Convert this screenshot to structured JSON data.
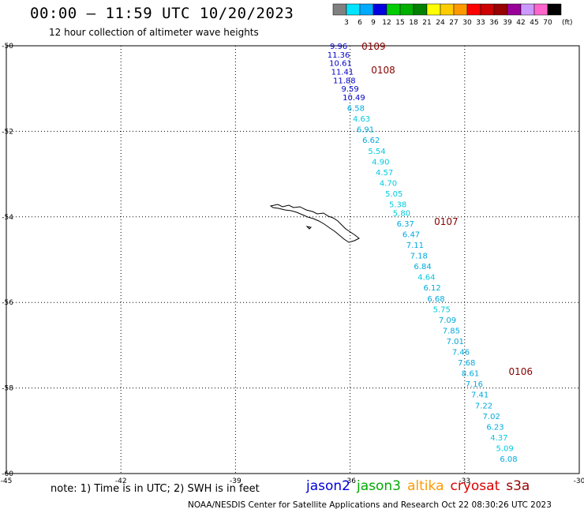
{
  "header": {
    "title": "00:00 – 11:59 UTC 10/20/2023",
    "subtitle": "12 hour collection of altimeter wave heights"
  },
  "color_scale": {
    "labels": [
      "3",
      "6",
      "9",
      "12",
      "15",
      "18",
      "21",
      "24",
      "27",
      "30",
      "33",
      "36",
      "39",
      "42",
      "45",
      "70"
    ],
    "unit": "(ft)",
    "colors": [
      "#808080",
      "#00e5ff",
      "#00aaff",
      "#0000e0",
      "#00cc00",
      "#00b000",
      "#008000",
      "#ffff00",
      "#ffcc00",
      "#ff9900",
      "#ff0000",
      "#cc0000",
      "#990000",
      "#990099",
      "#cc99ff",
      "#ff66cc",
      "#000000"
    ]
  },
  "axes": {
    "lon_labels": [
      "-45",
      "-42",
      "-39",
      "-36",
      "-33",
      "-30"
    ],
    "lat_labels": [
      "-50",
      "-52",
      "-54",
      "-56",
      "-58",
      "-60"
    ],
    "lon_min": -45,
    "lon_max": -30,
    "lat_top": -50,
    "lat_bottom": -60
  },
  "tracks": [
    {
      "id": "0109",
      "lon": -35.7,
      "lat": -50.0
    },
    {
      "id": "0108",
      "lon": -35.45,
      "lat": -50.55
    },
    {
      "id": "0107",
      "lon": -33.8,
      "lat": -54.1
    },
    {
      "id": "0106",
      "lon": -31.85,
      "lat": -57.6
    }
  ],
  "waves": [
    {
      "v": "9.96",
      "lon": -36.3,
      "lat": -50.0,
      "c": "#0000cc"
    },
    {
      "v": "11.36",
      "lon": -36.3,
      "lat": -50.2,
      "c": "#0000cc"
    },
    {
      "v": "10.61",
      "lon": -36.25,
      "lat": -50.4,
      "c": "#0000cc"
    },
    {
      "v": "11.41",
      "lon": -36.2,
      "lat": -50.6,
      "c": "#0000cc"
    },
    {
      "v": "11.88",
      "lon": -36.15,
      "lat": -50.8,
      "c": "#0000cc"
    },
    {
      "v": "9.59",
      "lon": -36.0,
      "lat": -51.0,
      "c": "#0000cc"
    },
    {
      "v": "10.49",
      "lon": -35.9,
      "lat": -51.2,
      "c": "#0000cc"
    },
    {
      "v": "6.58",
      "lon": -35.85,
      "lat": -51.45,
      "c": "#00aadd"
    },
    {
      "v": "4.63",
      "lon": -35.7,
      "lat": -51.7,
      "c": "#00ccdd"
    },
    {
      "v": "6.91",
      "lon": -35.6,
      "lat": -51.95,
      "c": "#00aadd"
    },
    {
      "v": "6.62",
      "lon": -35.45,
      "lat": -52.2,
      "c": "#00aadd"
    },
    {
      "v": "5.54",
      "lon": -35.3,
      "lat": -52.45,
      "c": "#00ccdd"
    },
    {
      "v": "4.90",
      "lon": -35.2,
      "lat": -52.7,
      "c": "#00ccdd"
    },
    {
      "v": "4.57",
      "lon": -35.1,
      "lat": -52.95,
      "c": "#00ccdd"
    },
    {
      "v": "4.70",
      "lon": -35.0,
      "lat": -53.2,
      "c": "#00ccdd"
    },
    {
      "v": "5.05",
      "lon": -34.85,
      "lat": -53.45,
      "c": "#00ccdd"
    },
    {
      "v": "5.38",
      "lon": -34.75,
      "lat": -53.7,
      "c": "#00ccdd"
    },
    {
      "v": "5.80",
      "lon": -34.65,
      "lat": -53.9,
      "c": "#00ccdd"
    },
    {
      "v": "6.37",
      "lon": -34.55,
      "lat": -54.15,
      "c": "#00aadd"
    },
    {
      "v": "6.47",
      "lon": -34.4,
      "lat": -54.4,
      "c": "#00aadd"
    },
    {
      "v": "7.11",
      "lon": -34.3,
      "lat": -54.65,
      "c": "#00aadd"
    },
    {
      "v": "7.18",
      "lon": -34.2,
      "lat": -54.9,
      "c": "#00aadd"
    },
    {
      "v": "6.84",
      "lon": -34.1,
      "lat": -55.15,
      "c": "#00aadd"
    },
    {
      "v": "4.64",
      "lon": -34.0,
      "lat": -55.4,
      "c": "#00ccdd"
    },
    {
      "v": "6.12",
      "lon": -33.85,
      "lat": -55.65,
      "c": "#00aadd"
    },
    {
      "v": "6.68",
      "lon": -33.75,
      "lat": -55.9,
      "c": "#00aadd"
    },
    {
      "v": "5.75",
      "lon": -33.6,
      "lat": -56.15,
      "c": "#00ccdd"
    },
    {
      "v": "7.09",
      "lon": -33.45,
      "lat": -56.4,
      "c": "#00aadd"
    },
    {
      "v": "7.85",
      "lon": -33.35,
      "lat": -56.65,
      "c": "#00aadd"
    },
    {
      "v": "7.01",
      "lon": -33.25,
      "lat": -56.9,
      "c": "#00aadd"
    },
    {
      "v": "7.46",
      "lon": -33.1,
      "lat": -57.15,
      "c": "#00aadd"
    },
    {
      "v": "7.68",
      "lon": -32.95,
      "lat": -57.4,
      "c": "#00aadd"
    },
    {
      "v": "8.61",
      "lon": -32.85,
      "lat": -57.65,
      "c": "#00aadd"
    },
    {
      "v": "7.16",
      "lon": -32.75,
      "lat": -57.9,
      "c": "#00aadd"
    },
    {
      "v": "7.41",
      "lon": -32.6,
      "lat": -58.15,
      "c": "#00aadd"
    },
    {
      "v": "7.22",
      "lon": -32.5,
      "lat": -58.4,
      "c": "#00aadd"
    },
    {
      "v": "7.02",
      "lon": -32.3,
      "lat": -58.65,
      "c": "#00aadd"
    },
    {
      "v": "6.23",
      "lon": -32.2,
      "lat": -58.9,
      "c": "#00aadd"
    },
    {
      "v": "4.37",
      "lon": -32.1,
      "lat": -59.15,
      "c": "#00ccdd"
    },
    {
      "v": "5.09",
      "lon": -31.95,
      "lat": -59.4,
      "c": "#00ccdd"
    },
    {
      "v": "6.08",
      "lon": -31.85,
      "lat": -59.65,
      "c": "#00aadd"
    }
  ],
  "footer": {
    "note": "note: 1) Time is in UTC; 2) SWH is in feet",
    "credit": "NOAA/NESDIS Center for Satellite Applications and Research    Oct 22 08:30:26 UTC 2023",
    "satellites": [
      {
        "name": "jason2",
        "color": "#0000dd"
      },
      {
        "name": "jason3",
        "color": "#00aa00"
      },
      {
        "name": "altika",
        "color": "#ff9900"
      },
      {
        "name": "cryosat",
        "color": "#dd0000"
      },
      {
        "name": "s3a",
        "color": "#990000"
      }
    ]
  }
}
